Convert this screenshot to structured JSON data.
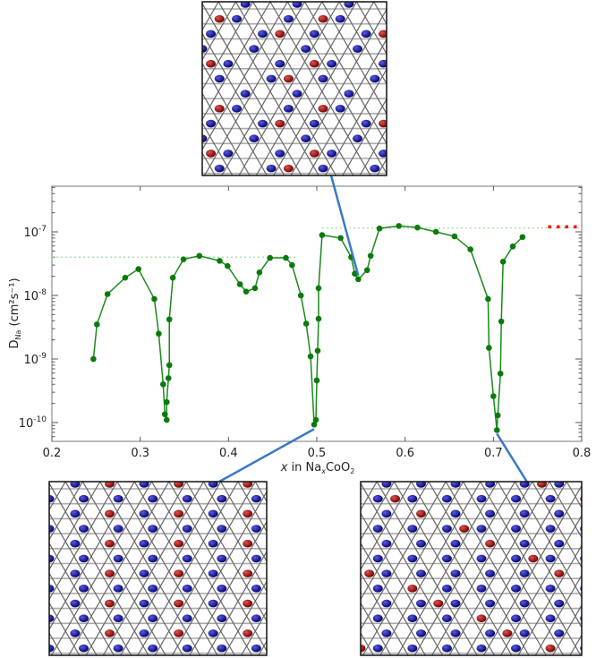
{
  "chart_data": {
    "type": "scatter",
    "mode": "lines+markers",
    "xlabel": "x in Na_xCoO_2",
    "ylabel": "D_Na (cm²s⁻¹)",
    "xlim": [
      0.2,
      0.8
    ],
    "ylim": [
      5e-11,
      5.2e-07
    ],
    "yscale": "log",
    "grid": false,
    "xticks": [
      "0.2",
      "0.3",
      "0.4",
      "0.5",
      "0.6",
      "0.7",
      "0.8"
    ],
    "xtick_values": [
      0.2,
      0.3,
      0.4,
      0.5,
      0.6,
      0.7,
      0.8
    ],
    "yticks": [
      {
        "value": 1e-07,
        "base": "10",
        "exp": "-7"
      },
      {
        "value": 1e-08,
        "base": "10",
        "exp": "-8"
      },
      {
        "value": 1e-09,
        "base": "10",
        "exp": "-9"
      },
      {
        "value": 1e-10,
        "base": "10",
        "exp": "-10"
      }
    ],
    "series": [
      {
        "color": "#1a8a1a",
        "marker_color": "#0a7a0a",
        "x": [
          0.247,
          0.251,
          0.263,
          0.283,
          0.298,
          0.316,
          0.321,
          0.326,
          0.328,
          0.33,
          0.33,
          0.332,
          0.333,
          0.333,
          0.337,
          0.349,
          0.367,
          0.39,
          0.399,
          0.413,
          0.42,
          0.43,
          0.435,
          0.447,
          0.465,
          0.472,
          0.482,
          0.488,
          0.493,
          0.497,
          0.499,
          0.5,
          0.501,
          0.502,
          0.502,
          0.506,
          0.527,
          0.539,
          0.543,
          0.547,
          0.557,
          0.561,
          0.571,
          0.593,
          0.614,
          0.635,
          0.656,
          0.674,
          0.694,
          0.695,
          0.7,
          0.704,
          0.705,
          0.708,
          0.709,
          0.711,
          0.722,
          0.733
        ],
        "y": [
          1e-09,
          3.5e-09,
          1.05e-08,
          1.9e-08,
          2.6e-08,
          8.8e-09,
          2.5e-09,
          4e-10,
          1.35e-10,
          1.1e-10,
          2.1e-10,
          5e-10,
          8e-10,
          4.2e-09,
          1.9e-08,
          3.7e-08,
          4.2e-08,
          3.5e-08,
          2.9e-08,
          1.5e-08,
          1.15e-08,
          1.3e-08,
          2.3e-08,
          3.9e-08,
          3.9e-08,
          3e-08,
          1e-08,
          3.6e-09,
          1.1e-09,
          9.3e-11,
          1.1e-10,
          4.6e-10,
          1.35e-09,
          4.3e-09,
          1.3e-08,
          8.9e-08,
          8e-08,
          4e-08,
          2.2e-08,
          1.8e-08,
          2.5e-08,
          4.2e-08,
          1.13e-07,
          1.24e-07,
          1.17e-07,
          1e-07,
          8.5e-08,
          5.3e-08,
          8.8e-09,
          1.5e-09,
          2.6e-10,
          7.6e-11,
          1.3e-10,
          5.9e-10,
          3.9e-09,
          3.4e-08,
          5.9e-08,
          8.3e-08
        ]
      }
    ],
    "reference_lines": [
      {
        "style": "dotted",
        "color": "#9ad89a",
        "y": 4e-08,
        "x_range": [
          0.2,
          0.476
        ]
      },
      {
        "style": "dotted",
        "color": "#9ad89a",
        "y": 1.15e-07,
        "x_range": [
          0.506,
          0.8
        ]
      },
      {
        "style": "dotted",
        "color": "#ff0000",
        "y": 1.2e-07,
        "x_range": [
          0.762,
          0.795
        ]
      }
    ],
    "insets": [
      {
        "position": "top",
        "points_to_x": 0.547,
        "atom_colors": [
          "#b01010",
          "#1a1aa8"
        ]
      },
      {
        "position": "bottom-left",
        "points_to_x": 0.497,
        "atom_colors": [
          "#b01010",
          "#1a1aa8"
        ]
      },
      {
        "position": "bottom-right",
        "points_to_x": 0.704,
        "atom_colors": [
          "#b01010",
          "#1a1aa8"
        ]
      }
    ],
    "connector_color": "#3a78c8"
  }
}
